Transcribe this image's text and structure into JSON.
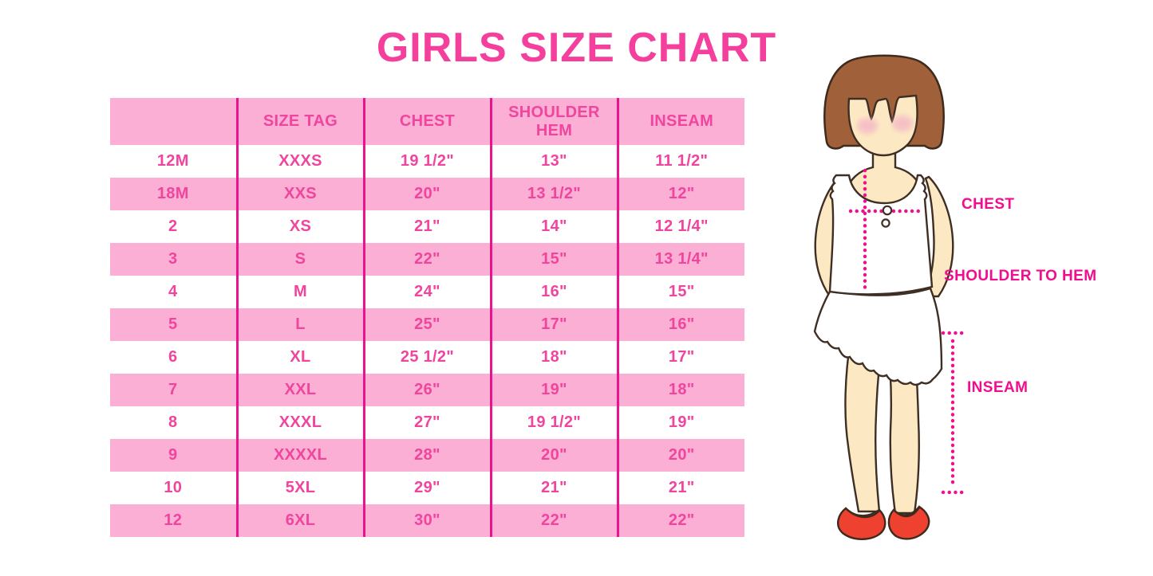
{
  "page": {
    "title": "GIRLS SIZE CHART"
  },
  "colors": {
    "row_pink": "#FBAFD4",
    "line_magenta": "#EC118C",
    "table_text": "#F0459E",
    "title_pink": "#F43F9C",
    "label_magenta": "#F20D8E",
    "hair_brown": "#A0603A",
    "skin": "#FCE9C3",
    "shoe_red": "#EE4130",
    "blush": "#F5B8C6"
  },
  "chart_data": {
    "type": "table",
    "title": "GIRLS SIZE CHART",
    "columns": [
      "",
      "SIZE TAG",
      "CHEST",
      "SHOULDER HEM",
      "INSEAM"
    ],
    "rows": [
      [
        "12M",
        "XXXS",
        "19 1/2\"",
        "13\"",
        "11 1/2\""
      ],
      [
        "18M",
        "XXS",
        "20\"",
        "13 1/2\"",
        "12\""
      ],
      [
        "2",
        "XS",
        "21\"",
        "14\"",
        "12 1/4\""
      ],
      [
        "3",
        "S",
        "22\"",
        "15\"",
        "13 1/4\""
      ],
      [
        "4",
        "M",
        "24\"",
        "16\"",
        "15\""
      ],
      [
        "5",
        "L",
        "25\"",
        "17\"",
        "16\""
      ],
      [
        "6",
        "XL",
        "25 1/2\"",
        "18\"",
        "17\""
      ],
      [
        "7",
        "XXL",
        "26\"",
        "19\"",
        "18\""
      ],
      [
        "8",
        "XXXL",
        "27\"",
        "19 1/2\"",
        "19\""
      ],
      [
        "9",
        "XXXXL",
        "28\"",
        "20\"",
        "20\""
      ],
      [
        "10",
        "5XL",
        "29\"",
        "21\"",
        "21\""
      ],
      [
        "12",
        "6XL",
        "30\"",
        "22\"",
        "22\""
      ]
    ],
    "layout_hints": {
      "striping": "alternating white and pink rows, header pink",
      "column_separators": "vertical magenta lines, no horizontal borders"
    }
  },
  "figure": {
    "labels": {
      "chest": "CHEST",
      "shoulder_to_hem": "SHOULDER TO HEM",
      "inseam": "INSEAM"
    }
  }
}
